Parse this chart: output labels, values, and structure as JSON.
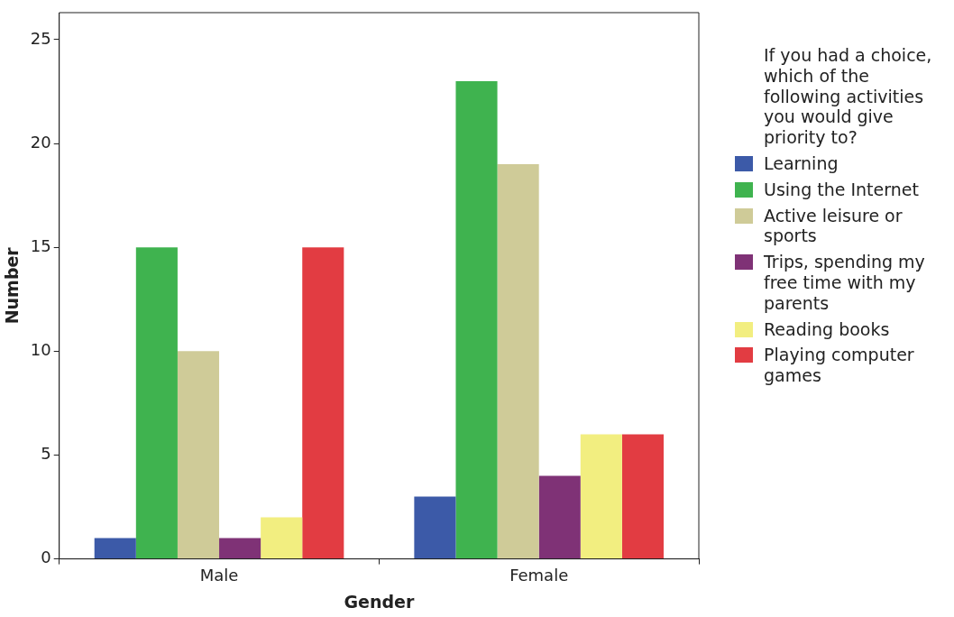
{
  "chart_data": {
    "type": "bar",
    "xlabel": "Gender",
    "ylabel": "Number",
    "legend_title": "If you had a choice, which of the following activities you would give priority to?",
    "categories": [
      "Male",
      "Female"
    ],
    "series": [
      {
        "name": "Learning",
        "color": "#3c5aa8",
        "values": [
          1,
          3
        ]
      },
      {
        "name": "Using the Internet",
        "color": "#3fb34f",
        "values": [
          15,
          23
        ]
      },
      {
        "name": "Active leisure or sports",
        "color": "#cfcb98",
        "values": [
          10,
          19
        ]
      },
      {
        "name": "Trips, spending my free time with my parents",
        "color": "#7f3276",
        "values": [
          1,
          4
        ]
      },
      {
        "name": "Reading books",
        "color": "#f2ee80",
        "values": [
          2,
          6
        ]
      },
      {
        "name": "Playing computer games",
        "color": "#e23c42",
        "values": [
          15,
          6
        ]
      }
    ],
    "ylim": [
      0,
      26.3
    ],
    "yticks": [
      0,
      5,
      10,
      15,
      20,
      25
    ],
    "grid": false,
    "legend": "right"
  }
}
